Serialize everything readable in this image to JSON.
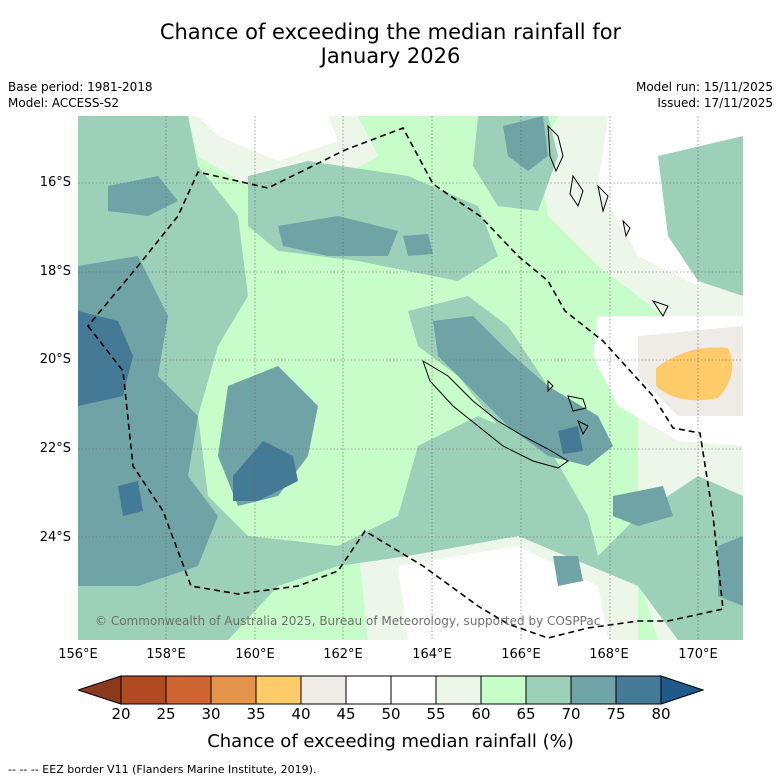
{
  "title": {
    "line1": "Chance of exceeding the median rainfall for",
    "line2": "January 2026"
  },
  "meta": {
    "base_period": "Base period: 1981-2018",
    "model": "Model: ACCESS-S2",
    "model_run": "Model run: 15/11/2025",
    "issued": "Issued: 17/11/2025"
  },
  "map": {
    "lat_ticks": [
      "16°S",
      "18°S",
      "20°S",
      "22°S",
      "24°S"
    ],
    "lon_ticks": [
      "156°E",
      "158°E",
      "160°E",
      "162°E",
      "164°E",
      "166°E",
      "168°E",
      "170°E"
    ],
    "copyright": "© Commonwealth of Australia 2025, Bureau of Meteorology, supported by COSPPac"
  },
  "colorbar": {
    "labels": [
      "20",
      "25",
      "30",
      "35",
      "40",
      "45",
      "50",
      "55",
      "60",
      "65",
      "70",
      "75",
      "80"
    ],
    "colors": [
      "#8b3a1e",
      "#b04a23",
      "#cf6532",
      "#e3944a",
      "#fdcb6a",
      "#efebe7",
      "#ffffff",
      "#ffffff",
      "#ecf7ea",
      "#c7fdc9",
      "#9dd0b8",
      "#6fa3a6",
      "#457a97",
      "#1f5a8a"
    ],
    "title": "Chance of exceeding median rainfall (%)"
  },
  "footnote": "-- -- -- EEZ border V11 (Flanders Marine Institute, 2019)."
}
